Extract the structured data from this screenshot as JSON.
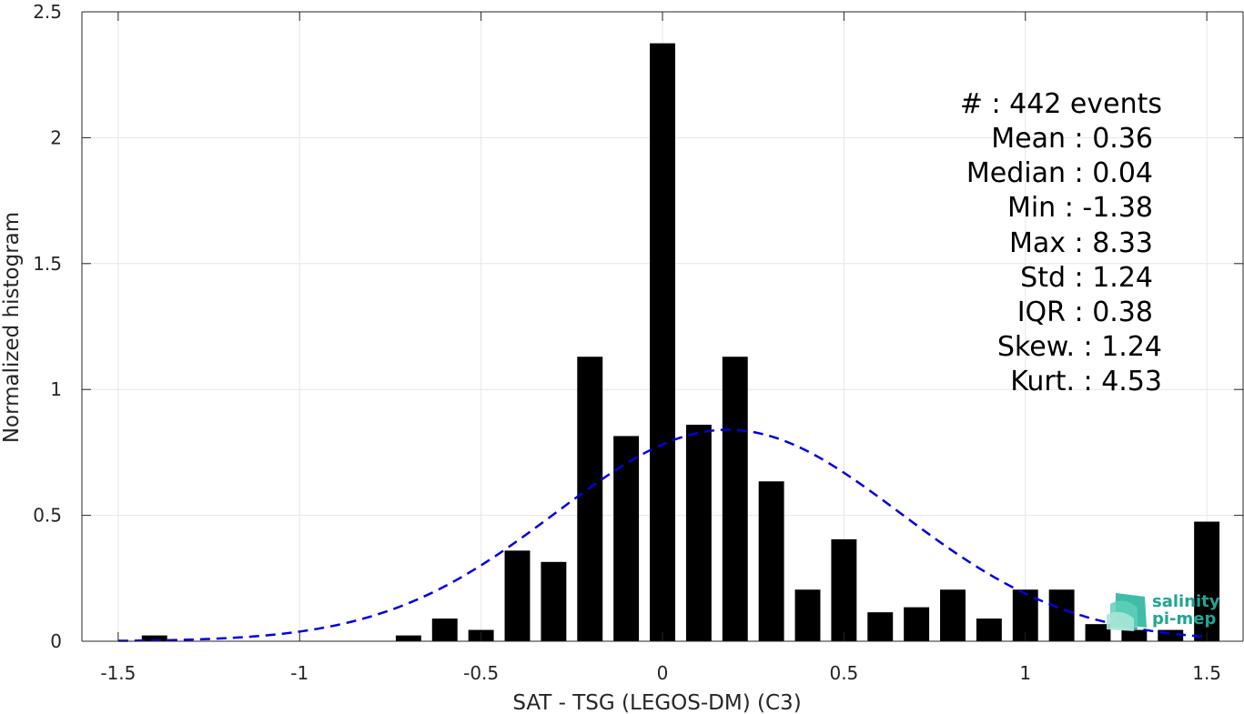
{
  "chart_data": {
    "type": "bar",
    "xlabel": "SAT - TSG (LEGOS-DM) (C3)",
    "ylabel": "Normalized histogram",
    "xlim": [
      -1.6,
      1.6
    ],
    "ylim": [
      0,
      2.5
    ],
    "xticks": [
      -1.5,
      -1,
      -0.5,
      0,
      0.5,
      1,
      1.5
    ],
    "xtick_labels": [
      "-1.5",
      "-1",
      "-0.5",
      "0",
      "0.5",
      "1",
      "1.5"
    ],
    "yticks": [
      0,
      0.5,
      1,
      1.5,
      2,
      2.5
    ],
    "ytick_labels": [
      "0",
      "0.5",
      "1",
      "1.5",
      "2",
      "2.5"
    ],
    "grid": true,
    "bar_color": "#000000",
    "bar_width": 0.07,
    "bars": [
      {
        "x": -1.4,
        "y": 0.023
      },
      {
        "x": -0.7,
        "y": 0.023
      },
      {
        "x": -0.6,
        "y": 0.09
      },
      {
        "x": -0.5,
        "y": 0.045
      },
      {
        "x": -0.4,
        "y": 0.36
      },
      {
        "x": -0.3,
        "y": 0.315
      },
      {
        "x": -0.2,
        "y": 1.13
      },
      {
        "x": -0.1,
        "y": 0.815
      },
      {
        "x": 0.0,
        "y": 2.375
      },
      {
        "x": 0.1,
        "y": 0.86
      },
      {
        "x": 0.2,
        "y": 1.13
      },
      {
        "x": 0.3,
        "y": 0.635
      },
      {
        "x": 0.4,
        "y": 0.205
      },
      {
        "x": 0.5,
        "y": 0.405
      },
      {
        "x": 0.6,
        "y": 0.115
      },
      {
        "x": 0.7,
        "y": 0.135
      },
      {
        "x": 0.8,
        "y": 0.205
      },
      {
        "x": 0.9,
        "y": 0.09
      },
      {
        "x": 1.0,
        "y": 0.205
      },
      {
        "x": 1.1,
        "y": 0.205
      },
      {
        "x": 1.2,
        "y": 0.068
      },
      {
        "x": 1.3,
        "y": 0.045
      },
      {
        "x": 1.4,
        "y": 0.045
      },
      {
        "x": 1.5,
        "y": 0.475
      }
    ],
    "fit_curve": {
      "style": "dashed",
      "color": "#0000e0",
      "mean": 0.18,
      "std": 0.475,
      "x_range": [
        -1.5,
        1.5
      ]
    },
    "annotations": [
      "#  : 442 events",
      "Mean : 0.36",
      "Median : 0.04",
      "Min : -1.38",
      "Max : 8.33",
      "Std : 1.24",
      "IQR : 0.38",
      "Skew. : 1.24",
      "Kurt. : 4.53"
    ]
  },
  "logo": {
    "line1": "salinity",
    "line2": "pi-mep",
    "color": "#20a595"
  }
}
